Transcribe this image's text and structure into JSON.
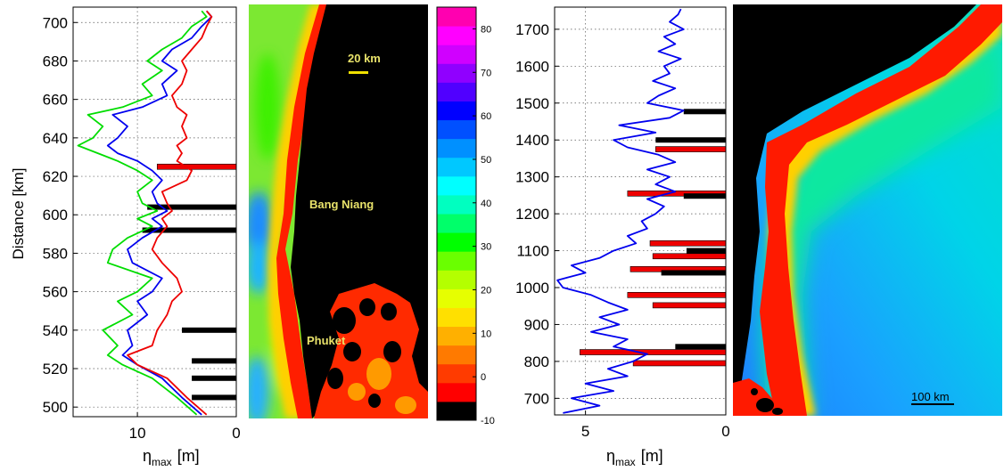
{
  "chart_data": [
    {
      "type": "line",
      "panel": "left profile",
      "ylabel": "Distance [km]",
      "xlabel_main": "η",
      "xlabel_sub": "max",
      "xlabel_unit": "[m]",
      "xlim": [
        16.5,
        0
      ],
      "ylim": [
        495,
        708
      ],
      "xticks": [
        10,
        0
      ],
      "yticks": [
        500,
        520,
        540,
        560,
        580,
        600,
        620,
        640,
        660,
        680,
        700
      ],
      "grid": true,
      "series": [
        {
          "color": "#00dd00",
          "y": [
            496,
            505,
            515,
            522,
            527,
            532,
            540,
            548,
            555,
            560,
            567,
            575,
            582,
            588,
            594,
            598,
            602,
            606,
            612,
            618,
            623,
            628,
            632,
            636,
            640,
            646,
            652,
            656,
            662,
            668,
            675,
            680,
            686,
            692,
            698,
            703,
            706
          ],
          "x": [
            4,
            6,
            8.5,
            11.5,
            13,
            12,
            13.5,
            10.5,
            12,
            10,
            8.5,
            13,
            12.5,
            11,
            8.5,
            10,
            8,
            9.5,
            10,
            8.5,
            10,
            12,
            14,
            16,
            14.5,
            13.5,
            15,
            11.5,
            8.5,
            9.5,
            7.5,
            9,
            7.5,
            5.5,
            4.5,
            3,
            3.5
          ]
        },
        {
          "color": "#0000ee",
          "y": [
            496,
            505,
            515,
            522,
            527,
            532,
            540,
            548,
            555,
            560,
            567,
            575,
            582,
            588,
            594,
            598,
            602,
            606,
            612,
            618,
            623,
            628,
            632,
            636,
            640,
            646,
            652,
            656,
            662,
            668,
            675,
            680,
            686,
            692,
            698,
            703,
            706
          ],
          "x": [
            3.5,
            5.5,
            7.5,
            10,
            11.5,
            10.5,
            11,
            9,
            10,
            8.5,
            7.5,
            10.5,
            11,
            9.5,
            7.5,
            8.5,
            7,
            8,
            8.5,
            7.5,
            8.5,
            10,
            12,
            13,
            12,
            11,
            12.5,
            9.5,
            7,
            7.5,
            6,
            7.5,
            6.5,
            4.5,
            3.5,
            2.5,
            3
          ]
        },
        {
          "color": "#ee0000",
          "y": [
            496,
            505,
            515,
            522,
            527,
            532,
            540,
            548,
            555,
            560,
            567,
            575,
            582,
            588,
            594,
            598,
            602,
            606,
            612,
            618,
            623,
            628,
            632,
            636,
            640,
            646,
            652,
            656,
            662,
            668,
            675,
            680,
            686,
            692,
            698,
            703,
            706
          ],
          "x": [
            3,
            5,
            7,
            10,
            11,
            8.5,
            8,
            7,
            6.5,
            5.5,
            6,
            7.5,
            8.5,
            8,
            7,
            7.5,
            6.5,
            7,
            7.5,
            5,
            4.5,
            6,
            5.5,
            6,
            5,
            5.5,
            5,
            6,
            6.5,
            5.5,
            5,
            5.5,
            4.5,
            3.5,
            3,
            2.5,
            3
          ]
        }
      ],
      "bars": [
        {
          "color": "#ee0000",
          "y": 625,
          "value": 8
        },
        {
          "color": "#000000",
          "y": 604,
          "value": 9
        },
        {
          "color": "#000000",
          "y": 592,
          "value": 9.5
        },
        {
          "color": "#000000",
          "y": 540,
          "value": 5.5
        },
        {
          "color": "#000000",
          "y": 524,
          "value": 4.5
        },
        {
          "color": "#000000",
          "y": 515,
          "value": 4.5
        },
        {
          "color": "#000000",
          "y": 505,
          "value": 4.5
        }
      ]
    },
    {
      "type": "heatmap",
      "panel": "coastal map (Bang Niang / Phuket)",
      "annotations": [
        "20 km",
        "Bang Niang",
        "Phuket"
      ],
      "colorbar": {
        "range": [
          -10,
          85
        ],
        "ticks": [
          80,
          70,
          60,
          50,
          40,
          30,
          20,
          10,
          0,
          -10
        ],
        "colors": [
          "#000000",
          "#ff0000",
          "#ff3b00",
          "#ff7a00",
          "#ffb000",
          "#ffe000",
          "#e6ff00",
          "#b4ff00",
          "#6aff00",
          "#00ff00",
          "#00ff6a",
          "#00ffc0",
          "#00ffff",
          "#00c8ff",
          "#0090ff",
          "#0050ff",
          "#0000ff",
          "#5000ff",
          "#9000ff",
          "#d000ff",
          "#ff00ff",
          "#ff00b0"
        ]
      }
    },
    {
      "type": "line",
      "panel": "right profile",
      "xlabel_main": "η",
      "xlabel_sub": "max",
      "xlabel_unit": "[m]",
      "xlim": [
        6.1,
        0
      ],
      "ylim": [
        655,
        1760
      ],
      "xticks": [
        5,
        0
      ],
      "yticks": [
        700,
        800,
        900,
        1000,
        1100,
        1200,
        1300,
        1400,
        1500,
        1600,
        1700
      ],
      "grid": true,
      "series": [
        {
          "color": "#0000ee",
          "y": [
            660,
            680,
            700,
            720,
            740,
            760,
            780,
            800,
            820,
            840,
            860,
            880,
            900,
            920,
            940,
            960,
            980,
            1000,
            1020,
            1040,
            1060,
            1080,
            1100,
            1120,
            1140,
            1160,
            1180,
            1200,
            1220,
            1240,
            1260,
            1280,
            1300,
            1320,
            1340,
            1360,
            1380,
            1400,
            1420,
            1440,
            1460,
            1480,
            1500,
            1520,
            1540,
            1560,
            1580,
            1600,
            1620,
            1640,
            1660,
            1680,
            1700,
            1720,
            1740,
            1755
          ],
          "x": [
            5.8,
            4.5,
            5.5,
            4,
            5,
            3.5,
            4.2,
            3.3,
            2.8,
            4,
            3.5,
            4.8,
            3.8,
            4.5,
            3.5,
            4.2,
            4.8,
            5.8,
            6.0,
            5.0,
            5.5,
            4.5,
            4.0,
            3.2,
            3.5,
            2.8,
            3.0,
            2.5,
            2.2,
            2.8,
            1.8,
            2.5,
            2.0,
            2.8,
            1.8,
            2.4,
            3.5,
            4.0,
            2.5,
            3.8,
            2.0,
            1.5,
            2.8,
            2.4,
            1.8,
            2.6,
            2.0,
            2.2,
            1.6,
            2.4,
            1.8,
            2.2,
            1.5,
            2.0,
            1.7,
            1.6
          ]
        }
      ],
      "bars": [
        {
          "color": "#000000",
          "y": 1477,
          "value": 1.5
        },
        {
          "color": "#000000",
          "y": 1400,
          "value": 2.5
        },
        {
          "color": "#ee0000",
          "y": 1375,
          "value": 2.5
        },
        {
          "color": "#ee0000",
          "y": 1255,
          "value": 3.5
        },
        {
          "color": "#000000",
          "y": 1248,
          "value": 1.5
        },
        {
          "color": "#ee0000",
          "y": 1120,
          "value": 2.7
        },
        {
          "color": "#000000",
          "y": 1100,
          "value": 1.4
        },
        {
          "color": "#ee0000",
          "y": 1085,
          "value": 2.6
        },
        {
          "color": "#ee0000",
          "y": 1050,
          "value": 3.4
        },
        {
          "color": "#000000",
          "y": 1040,
          "value": 2.3
        },
        {
          "color": "#ee0000",
          "y": 980,
          "value": 3.5
        },
        {
          "color": "#ee0000",
          "y": 952,
          "value": 2.6
        },
        {
          "color": "#000000",
          "y": 840,
          "value": 1.8
        },
        {
          "color": "#ee0000",
          "y": 825,
          "value": 5.2
        },
        {
          "color": "#ee0000",
          "y": 795,
          "value": 3.3
        }
      ]
    },
    {
      "type": "heatmap",
      "panel": "regional map",
      "annotations": [
        "100 km"
      ]
    }
  ]
}
